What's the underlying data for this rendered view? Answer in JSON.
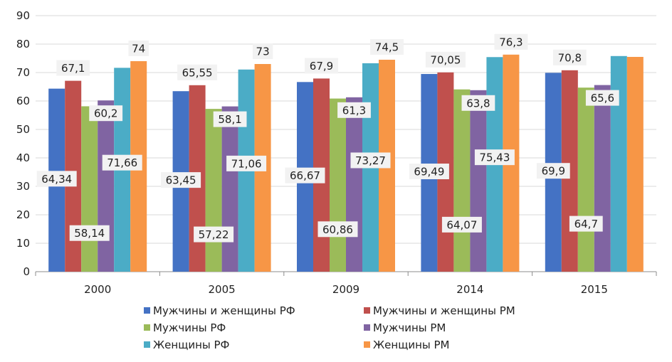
{
  "chart_data": {
    "type": "bar",
    "title": "",
    "xlabel": "",
    "ylabel": "",
    "ylim": [
      0,
      90
    ],
    "yticks": [
      0,
      10,
      20,
      30,
      40,
      50,
      60,
      70,
      80,
      90
    ],
    "categories": [
      "2000",
      "2005",
      "2009",
      "2014",
      "2015"
    ],
    "grid": true,
    "legend_position": "bottom",
    "series": [
      {
        "name": "Мужчины и женщины РФ",
        "color": "#4472c4",
        "values": [
          64.34,
          63.45,
          66.67,
          69.49,
          69.9
        ],
        "labels": [
          "64,34",
          "63,45",
          "66,67",
          "69,49",
          "69,9"
        ]
      },
      {
        "name": "Мужчины и женщины РМ",
        "color": "#c0504d",
        "values": [
          67.1,
          65.55,
          67.9,
          70.05,
          70.8
        ],
        "labels": [
          "67,1",
          "65,55",
          "67,9",
          "70,05",
          "70,8"
        ]
      },
      {
        "name": "Мужчины РФ",
        "color": "#9bbb59",
        "values": [
          58.14,
          57.22,
          60.86,
          64.07,
          64.7
        ],
        "labels": [
          "58,14",
          "57,22",
          "60,86",
          "64,07",
          "64,7"
        ]
      },
      {
        "name": "Мужчины РМ",
        "color": "#8064a2",
        "values": [
          60.2,
          58.1,
          61.3,
          63.8,
          65.6
        ],
        "labels": [
          "60,2",
          "58,1",
          "61,3",
          "63,8",
          "65,6"
        ]
      },
      {
        "name": "Женщины РФ",
        "color": "#4bacc6",
        "values": [
          71.66,
          71.06,
          73.27,
          75.43,
          75.8
        ],
        "labels": [
          "71,66",
          "71,06",
          "73,27",
          "75,43",
          null
        ]
      },
      {
        "name": "Женщины РМ",
        "color": "#f79646",
        "values": [
          74,
          73,
          74.5,
          76.3,
          75.5
        ],
        "labels": [
          "74",
          "73",
          "74,5",
          "76,3",
          null
        ]
      }
    ]
  }
}
